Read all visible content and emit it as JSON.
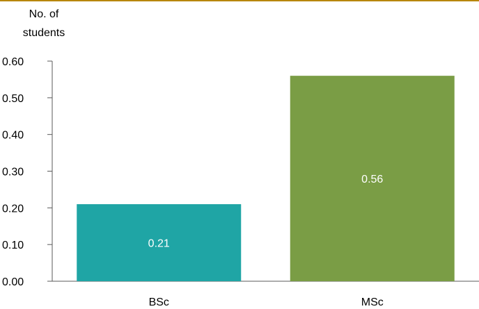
{
  "colors": {
    "top_rule": "#B8860B",
    "axis": "#595959",
    "bar_label_text": "#ffffff"
  },
  "chart_data": {
    "type": "bar",
    "title": "",
    "ylabel_lines": [
      "No. of",
      "students"
    ],
    "xlabel": "",
    "categories": [
      "BSc",
      "MSc"
    ],
    "values": [
      0.21,
      0.56
    ],
    "value_labels": [
      "0.21",
      "0.56"
    ],
    "bar_colors": [
      "#1FA5A5",
      "#7A9D45"
    ],
    "ylim": [
      0,
      0.6
    ],
    "yticks": [
      0.0,
      0.1,
      0.2,
      0.3,
      0.4,
      0.5,
      0.6
    ],
    "ytick_labels": [
      "0.00",
      "0.10",
      "0.20",
      "0.30",
      "0.40",
      "0.50",
      "0.60"
    ],
    "grid": false,
    "legend": "none"
  }
}
